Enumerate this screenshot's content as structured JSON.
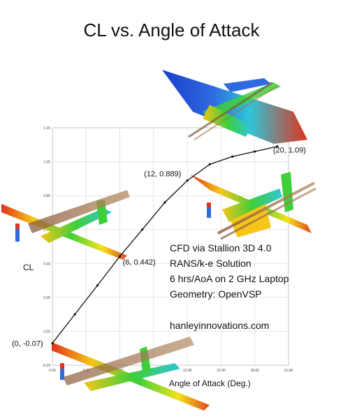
{
  "page": {
    "title": "CL vs. Angle of Attack"
  },
  "notes": {
    "line1": "CFD via Stallion 3D 4.0",
    "line2": "RANS/k-e Solution",
    "line3": "6 hrs/AoA on 2 GHz Laptop",
    "line4": "Geometry: OpenVSP",
    "website": "hanleyinnovations.com"
  },
  "colors": {
    "line": "#111111",
    "grid": "#cfcfcf",
    "frame": "#9a9a9a"
  },
  "chart_data": {
    "type": "line",
    "title": "CL vs. Angle of Attack",
    "xlabel": "Angle of Attack (Deg.)",
    "ylabel": "CL",
    "xlim": [
      0,
      21
    ],
    "ylim": [
      -0.2,
      1.2
    ],
    "xticks": [
      "0.00",
      "3.00",
      "6.00",
      "9.00",
      "12.00",
      "15.00",
      "18.00",
      "21.00"
    ],
    "yticks": [
      "-0.20",
      "0.00",
      "0.20",
      "0.40",
      "0.60",
      "0.80",
      "1.00",
      "1.20"
    ],
    "grid": true,
    "series": [
      {
        "x": [
          0,
          2,
          4,
          6,
          8,
          10,
          12,
          14,
          16,
          18,
          20
        ],
        "y": [
          -0.07,
          0.1,
          0.27,
          0.442,
          0.6,
          0.76,
          0.889,
          0.985,
          1.03,
          1.06,
          1.09
        ]
      }
    ],
    "annotations": [
      {
        "x": 0,
        "y": -0.07,
        "label": "(0, -0.07)"
      },
      {
        "x": 6,
        "y": 0.442,
        "label": "(6, 0.442)"
      },
      {
        "x": 12,
        "y": 0.889,
        "label": "(12, 0.889)"
      },
      {
        "x": 20,
        "y": 1.09,
        "label": "(20, 1.09)"
      }
    ]
  }
}
